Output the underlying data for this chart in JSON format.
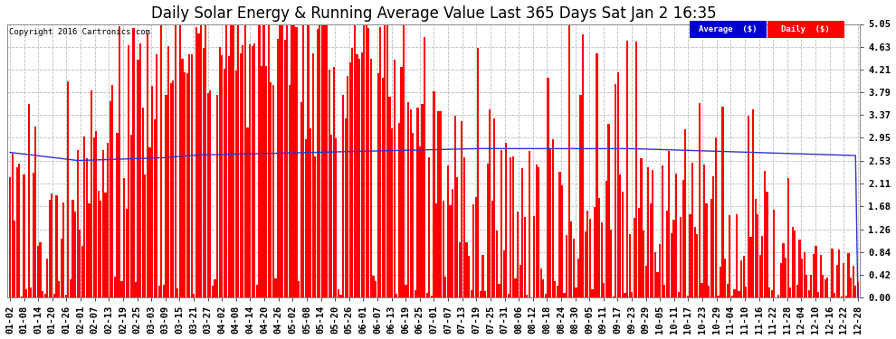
{
  "title": "Daily Solar Energy & Running Average Value Last 365 Days Sat Jan 2 16:35",
  "copyright": "Copyright 2016 Cartronics.com",
  "bar_color": "#FF0000",
  "avg_line_color": "#3333CC",
  "background_color": "#FFFFFF",
  "plot_bg_color": "#FFFFFF",
  "grid_color": "#BBBBBB",
  "ylim": [
    0.0,
    5.05
  ],
  "yticks": [
    0.0,
    0.42,
    0.84,
    1.26,
    1.68,
    2.11,
    2.53,
    2.95,
    3.37,
    3.79,
    4.21,
    4.63,
    5.05
  ],
  "legend_avg_label": "Average  ($)",
  "legend_daily_label": "Daily  ($)",
  "legend_avg_color": "#0000CC",
  "legend_daily_color": "#FF0000",
  "title_fontsize": 12,
  "tick_fontsize": 7.5,
  "num_days": 365,
  "x_labels": [
    "01-02",
    "01-08",
    "01-14",
    "01-20",
    "01-26",
    "02-01",
    "02-07",
    "02-13",
    "02-19",
    "02-25",
    "03-03",
    "03-09",
    "03-15",
    "03-21",
    "03-27",
    "04-02",
    "04-08",
    "04-14",
    "04-20",
    "04-26",
    "05-02",
    "05-08",
    "05-14",
    "05-20",
    "05-26",
    "06-01",
    "06-07",
    "06-13",
    "06-19",
    "06-25",
    "07-01",
    "07-07",
    "07-13",
    "07-19",
    "07-25",
    "07-31",
    "08-06",
    "08-12",
    "08-18",
    "08-24",
    "08-30",
    "09-05",
    "09-11",
    "09-17",
    "09-23",
    "09-29",
    "10-05",
    "10-11",
    "10-17",
    "10-23",
    "10-29",
    "11-04",
    "11-10",
    "11-16",
    "11-22",
    "11-28",
    "12-04",
    "12-10",
    "12-16",
    "12-22",
    "12-28"
  ]
}
